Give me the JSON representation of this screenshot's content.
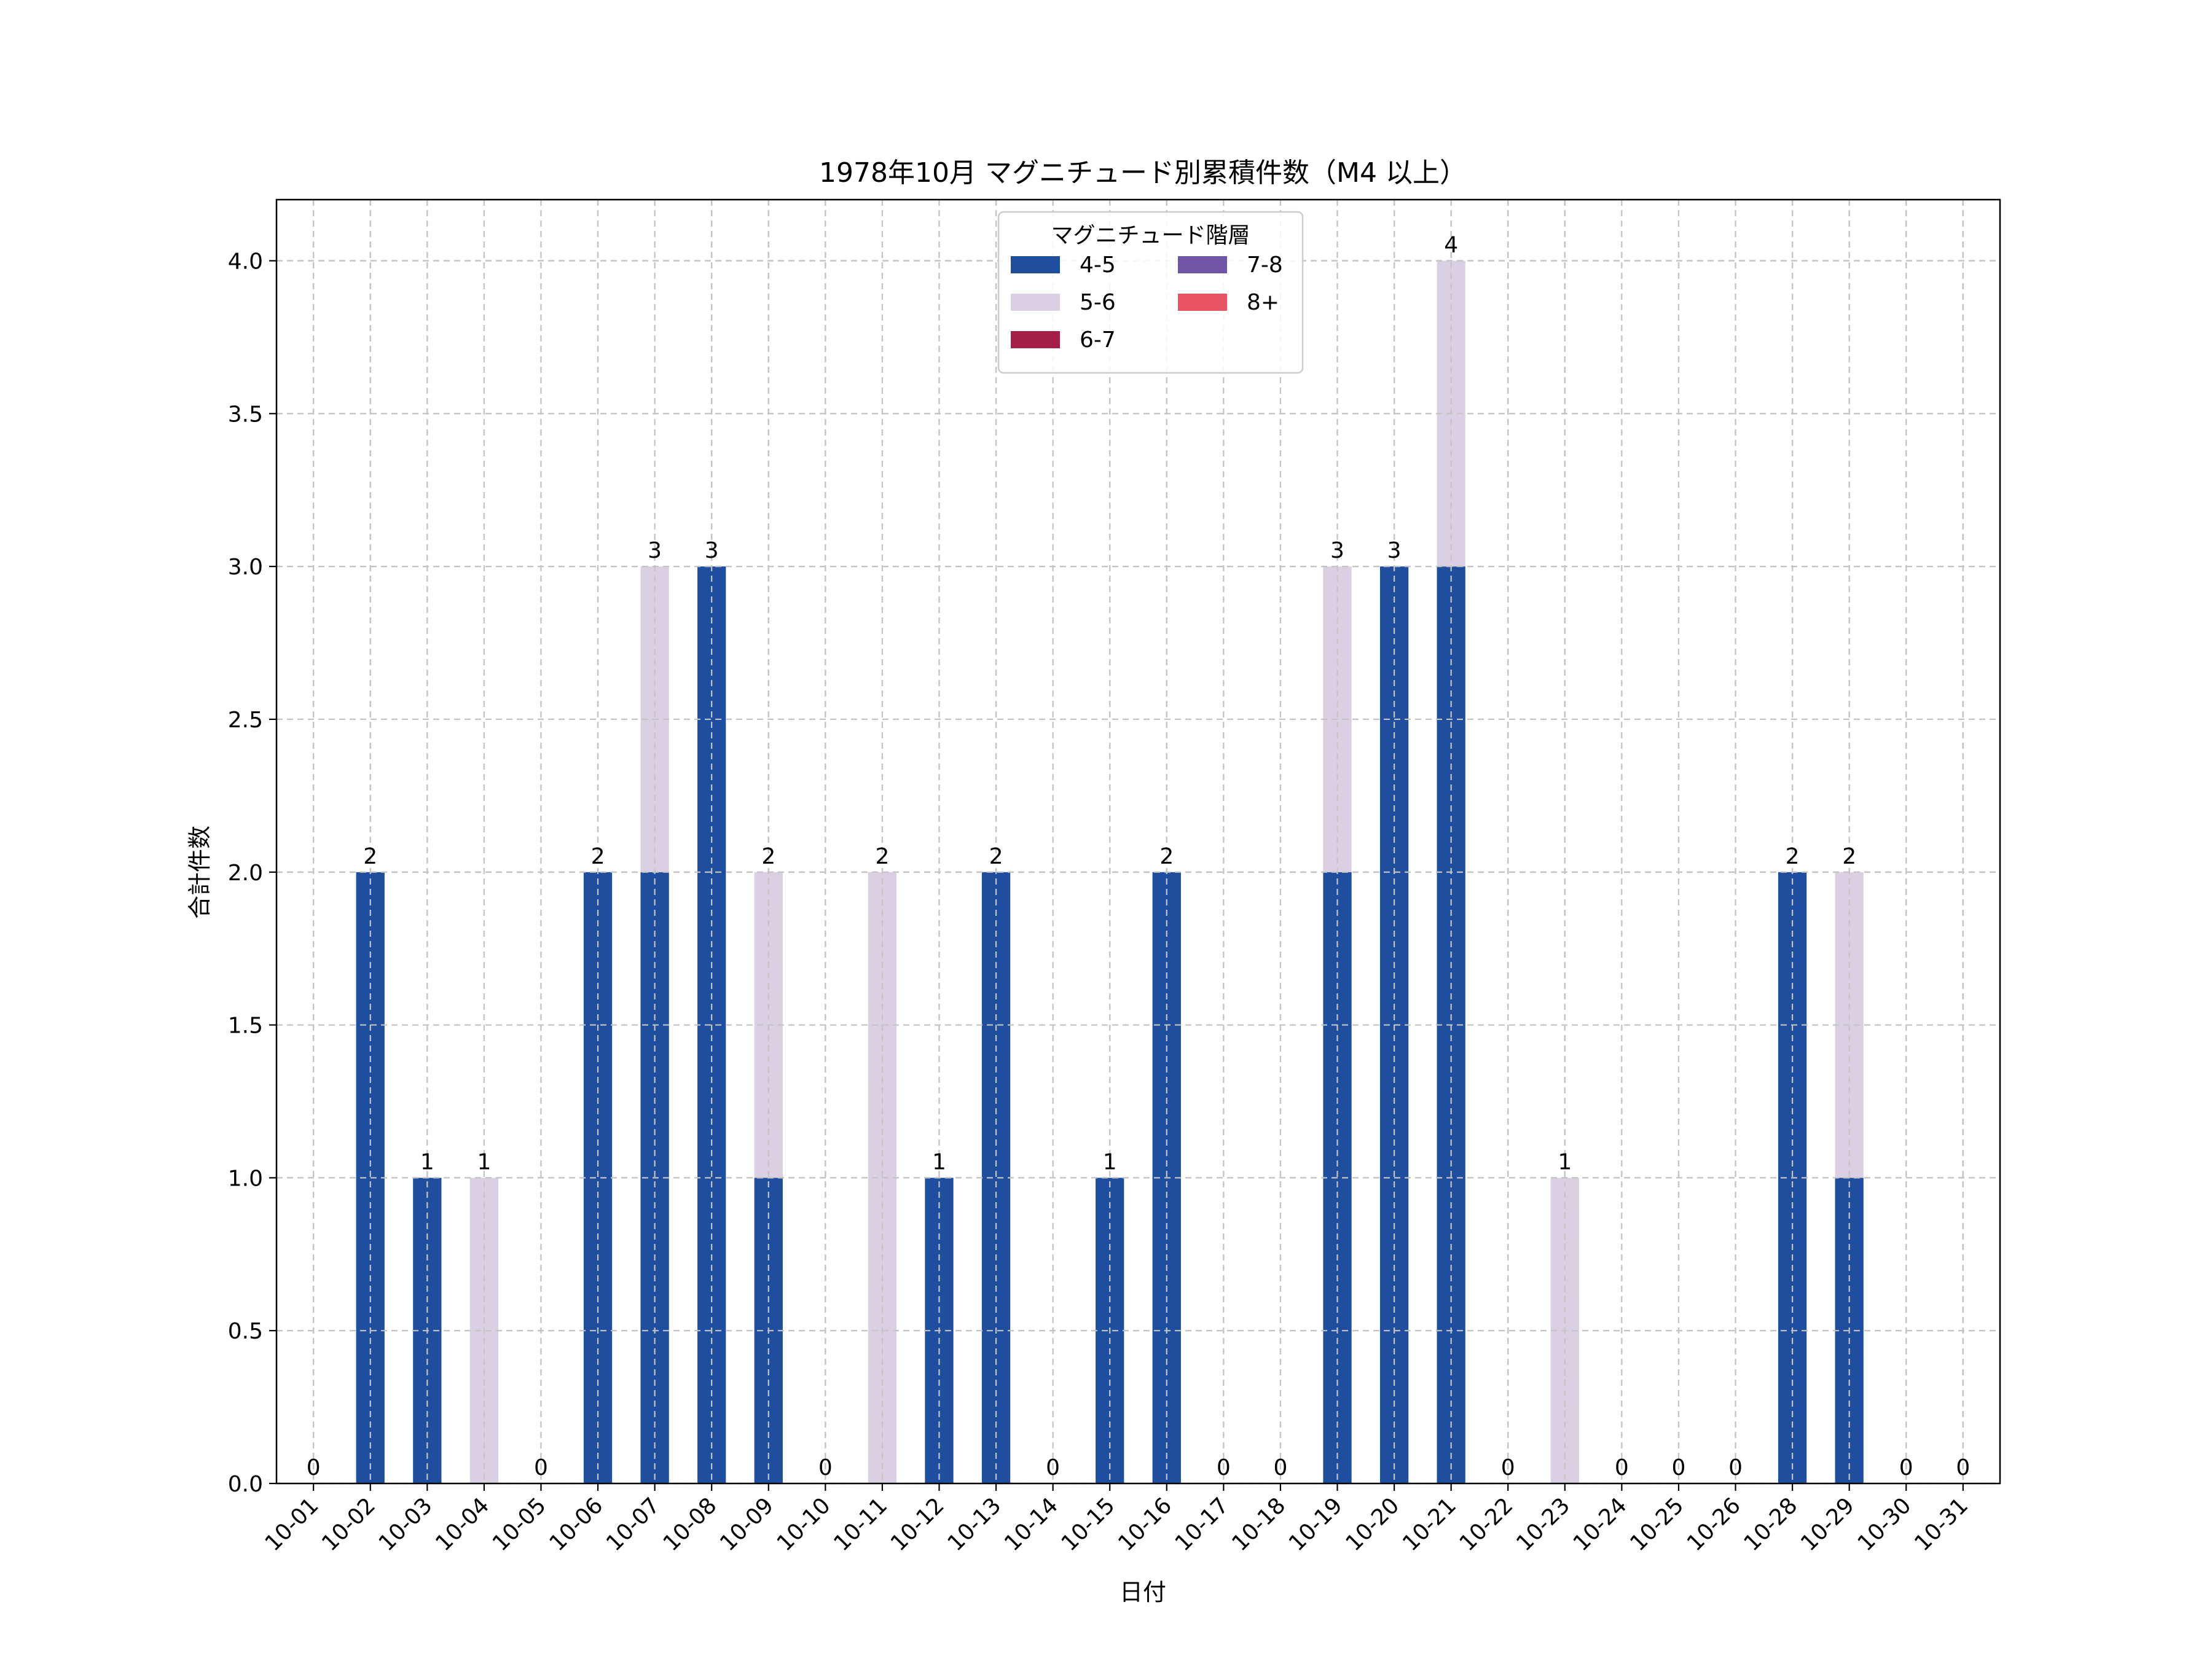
{
  "chart_data": {
    "type": "bar",
    "stacked": true,
    "title": "1978年10月 マグニチュード別累積件数（M4 以上）",
    "xlabel": "日付",
    "ylabel": "合計件数",
    "ylim": [
      0,
      4.2
    ],
    "yticks": [
      "0.0",
      "0.5",
      "1.0",
      "1.5",
      "2.0",
      "2.5",
      "3.0",
      "3.5",
      "4.0"
    ],
    "grid": true,
    "legend": {
      "title": "マグニチュード階層",
      "placement": "top-center",
      "columns": 2
    },
    "categories": [
      "10-01",
      "10-02",
      "10-03",
      "10-04",
      "10-05",
      "10-06",
      "10-07",
      "10-08",
      "10-09",
      "10-10",
      "10-11",
      "10-12",
      "10-13",
      "10-14",
      "10-15",
      "10-16",
      "10-17",
      "10-18",
      "10-19",
      "10-20",
      "10-21",
      "10-22",
      "10-23",
      "10-24",
      "10-25",
      "10-26",
      "10-28",
      "10-29",
      "10-30",
      "10-31"
    ],
    "series": [
      {
        "name": "4-5",
        "color": "#1f4e9f",
        "values": [
          0,
          2,
          1,
          0,
          0,
          2,
          2,
          3,
          1,
          0,
          0,
          1,
          2,
          0,
          1,
          2,
          0,
          0,
          2,
          3,
          3,
          0,
          0,
          0,
          0,
          0,
          2,
          1,
          0,
          0
        ]
      },
      {
        "name": "5-6",
        "color": "#dbcfe3",
        "values": [
          0,
          0,
          0,
          1,
          0,
          0,
          1,
          0,
          1,
          0,
          2,
          0,
          0,
          0,
          0,
          0,
          0,
          0,
          1,
          0,
          1,
          0,
          1,
          0,
          0,
          0,
          0,
          1,
          0,
          0
        ]
      },
      {
        "name": "6-7",
        "color": "#a41f45",
        "values": [
          0,
          0,
          0,
          0,
          0,
          0,
          0,
          0,
          0,
          0,
          0,
          0,
          0,
          0,
          0,
          0,
          0,
          0,
          0,
          0,
          0,
          0,
          0,
          0,
          0,
          0,
          0,
          0,
          0,
          0
        ]
      },
      {
        "name": "7-8",
        "color": "#6f55a3",
        "values": [
          0,
          0,
          0,
          0,
          0,
          0,
          0,
          0,
          0,
          0,
          0,
          0,
          0,
          0,
          0,
          0,
          0,
          0,
          0,
          0,
          0,
          0,
          0,
          0,
          0,
          0,
          0,
          0,
          0,
          0
        ]
      },
      {
        "name": "8+",
        "color": "#e85561",
        "values": [
          0,
          0,
          0,
          0,
          0,
          0,
          0,
          0,
          0,
          0,
          0,
          0,
          0,
          0,
          0,
          0,
          0,
          0,
          0,
          0,
          0,
          0,
          0,
          0,
          0,
          0,
          0,
          0,
          0,
          0
        ]
      }
    ],
    "totals": [
      0,
      2,
      1,
      1,
      0,
      2,
      3,
      3,
      2,
      0,
      2,
      1,
      2,
      0,
      1,
      2,
      0,
      0,
      3,
      3,
      4,
      0,
      1,
      0,
      0,
      0,
      2,
      2,
      0,
      0
    ]
  }
}
